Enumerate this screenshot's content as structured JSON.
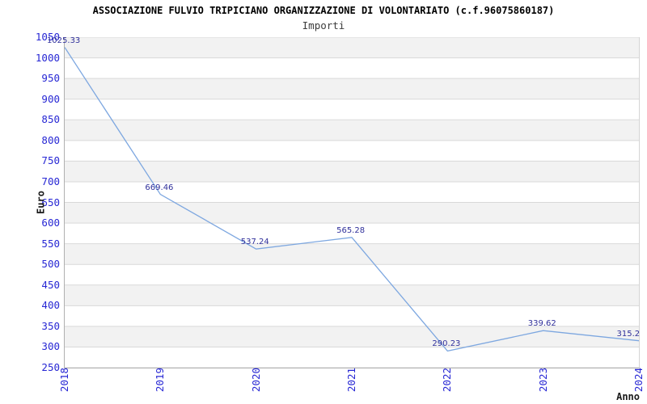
{
  "header": {
    "title": "ASSOCIAZIONE FULVIO TRIPICIANO ORGANIZZAZIONE DI VOLONTARIATO (c.f.96075860187)",
    "subtitle": "Importi"
  },
  "chart_data": {
    "type": "line",
    "title": "ASSOCIAZIONE FULVIO TRIPICIANO ORGANIZZAZIONE DI VOLONTARIATO (c.f.96075860187)",
    "subtitle": "Importi",
    "xlabel": "Anno",
    "ylabel": "Euro",
    "x": [
      "2018",
      "2019",
      "2020",
      "2021",
      "2022",
      "2023",
      "2024"
    ],
    "series": [
      {
        "name": "Importi",
        "values": [
          1025.33,
          669.46,
          537.24,
          565.28,
          290.23,
          339.62,
          315.2
        ]
      }
    ],
    "point_labels": [
      "1025.33",
      "669.46",
      "537.24",
      "565.28",
      "290.23",
      "339.62",
      "315.2"
    ],
    "ylim": [
      250,
      1050
    ],
    "ytick_step": 50,
    "yticks": [
      1050,
      1000,
      950,
      900,
      850,
      800,
      750,
      700,
      650,
      600,
      550,
      500,
      450,
      400,
      350,
      300,
      250
    ],
    "grid": "horizontal",
    "bands": "alternating-gray-starting-at-top",
    "legend": "none",
    "colors": {
      "line": "#7da7e0",
      "band": "#f2f2f2",
      "gridline": "#d9d9d9",
      "axis": "#b0b0b0",
      "tick_label": "#2727d4",
      "point_label": "#30309b",
      "title": "#000000",
      "subtitle": "#3d3d3d"
    }
  }
}
